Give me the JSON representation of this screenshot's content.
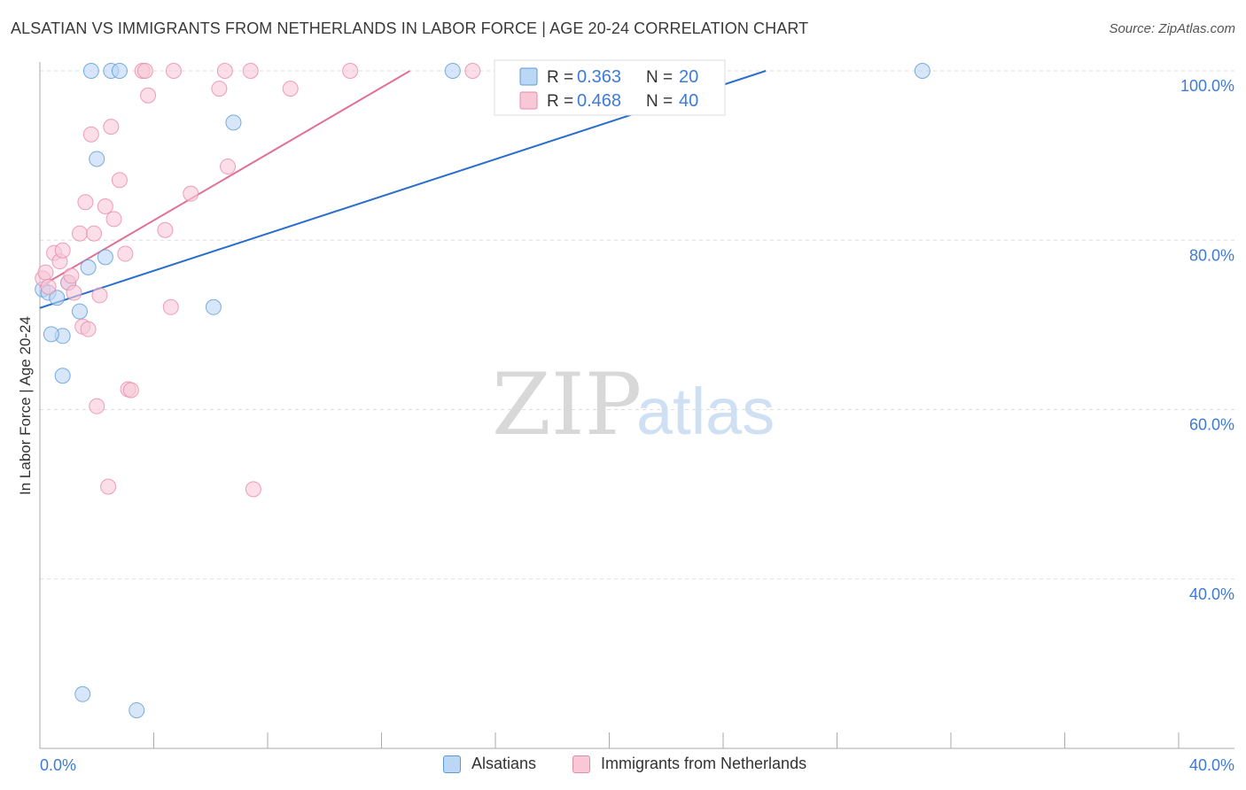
{
  "header": {
    "title": "ALSATIAN VS IMMIGRANTS FROM NETHERLANDS IN LABOR FORCE | AGE 20-24 CORRELATION CHART",
    "source": "Source: ZipAtlas.com"
  },
  "watermark": {
    "zip": "ZIP",
    "atlas": "atlas"
  },
  "colors": {
    "blue": "#5b9bd5",
    "blue_fill": "#bcd6f5",
    "blue_line": "#2a6fcc",
    "pink": "#e88aa8",
    "pink_fill": "#f8c8d7",
    "pink_line": "#e07098",
    "tick_label": "#3d7bd9",
    "grid": "#dddddd"
  },
  "chart_data": {
    "type": "scatter",
    "xlabel": "",
    "ylabel": "In Labor Force | Age 20-24",
    "xlim": [
      0,
      40
    ],
    "ylim": [
      20,
      102
    ],
    "x_tick_labels": [
      {
        "value": 0,
        "label": "0.0%"
      },
      {
        "value": 40,
        "label": "40.0%"
      }
    ],
    "y_tick_labels": [
      {
        "value": 40,
        "label": "40.0%"
      },
      {
        "value": 60,
        "label": "60.0%"
      },
      {
        "value": 80,
        "label": "80.0%"
      },
      {
        "value": 100,
        "label": "100.0%"
      }
    ],
    "grid": true,
    "legend_position": "top-center",
    "stats": [
      {
        "r_label": "R = ",
        "r_value": "0.363",
        "n_label": "N = ",
        "n_value": "20"
      },
      {
        "r_label": "R = ",
        "r_value": "0.468",
        "n_label": "N = ",
        "n_value": "40"
      }
    ],
    "series": [
      {
        "name": "Alsatians",
        "color": "#5b9bd5",
        "points": [
          [
            0.1,
            74.2
          ],
          [
            0.3,
            73.8
          ],
          [
            0.6,
            73.2
          ],
          [
            0.8,
            68.7
          ],
          [
            0.4,
            68.9
          ],
          [
            0.8,
            64.0
          ],
          [
            1.4,
            71.6
          ],
          [
            1.7,
            76.8
          ],
          [
            1.0,
            75.0
          ],
          [
            2.3,
            78.0
          ],
          [
            2.0,
            89.6
          ],
          [
            1.8,
            100.0
          ],
          [
            2.5,
            100.0
          ],
          [
            2.8,
            100.0
          ],
          [
            6.8,
            93.9
          ],
          [
            6.1,
            72.1
          ],
          [
            1.5,
            26.4
          ],
          [
            3.4,
            24.5
          ],
          [
            14.5,
            100.0
          ],
          [
            31.0,
            100.0
          ]
        ],
        "trend": [
          [
            0.0,
            72.0
          ],
          [
            25.5,
            100.0
          ]
        ]
      },
      {
        "name": "Immigrants from Netherlands",
        "color": "#e88aa8",
        "points": [
          [
            0.1,
            75.5
          ],
          [
            0.2,
            76.2
          ],
          [
            0.3,
            74.5
          ],
          [
            0.5,
            78.5
          ],
          [
            0.7,
            77.5
          ],
          [
            0.8,
            78.8
          ],
          [
            1.0,
            75.0
          ],
          [
            1.1,
            75.8
          ],
          [
            1.2,
            73.8
          ],
          [
            1.4,
            80.8
          ],
          [
            1.5,
            69.8
          ],
          [
            1.6,
            84.5
          ],
          [
            1.7,
            69.5
          ],
          [
            1.8,
            92.5
          ],
          [
            1.9,
            80.8
          ],
          [
            2.0,
            60.4
          ],
          [
            2.1,
            73.5
          ],
          [
            2.3,
            84.0
          ],
          [
            2.4,
            50.9
          ],
          [
            2.5,
            93.4
          ],
          [
            2.6,
            82.5
          ],
          [
            2.8,
            87.1
          ],
          [
            3.0,
            78.4
          ],
          [
            3.1,
            62.4
          ],
          [
            3.2,
            62.3
          ],
          [
            3.6,
            100.0
          ],
          [
            3.8,
            97.1
          ],
          [
            4.4,
            81.2
          ],
          [
            4.6,
            72.1
          ],
          [
            4.7,
            100.0
          ],
          [
            5.3,
            85.5
          ],
          [
            6.3,
            97.9
          ],
          [
            6.5,
            100.0
          ],
          [
            6.6,
            88.7
          ],
          [
            7.4,
            100.0
          ],
          [
            7.5,
            50.6
          ],
          [
            8.8,
            97.9
          ],
          [
            10.9,
            100.0
          ],
          [
            15.2,
            100.0
          ],
          [
            3.7,
            100.0
          ]
        ],
        "trend": [
          [
            0.0,
            74.5
          ],
          [
            13.0,
            100.0
          ]
        ]
      }
    ]
  }
}
